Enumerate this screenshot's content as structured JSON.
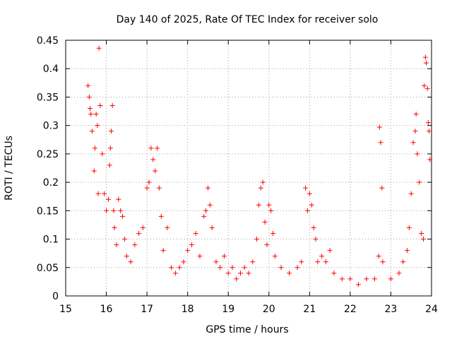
{
  "chart_data": {
    "type": "scatter",
    "title": "Day 140 of 2025, Rate Of TEC Index for receiver solo",
    "xlabel": "GPS time / hours",
    "ylabel": "ROTI / TECUs",
    "xlim": [
      15,
      24
    ],
    "ylim": [
      0,
      0.45
    ],
    "xticks": [
      "15",
      "16",
      "17",
      "18",
      "19",
      "20",
      "21",
      "22",
      "23",
      "24"
    ],
    "yticks": [
      "0",
      "0.05",
      "0.1",
      "0.15",
      "0.2",
      "0.25",
      "0.3",
      "0.35",
      "0.4",
      "0.45"
    ],
    "grid": true,
    "marker": "+",
    "color": "#ff0000",
    "series": [
      {
        "name": "ROTI",
        "points": [
          [
            15.55,
            0.37
          ],
          [
            15.58,
            0.35
          ],
          [
            15.6,
            0.33
          ],
          [
            15.62,
            0.32
          ],
          [
            15.65,
            0.29
          ],
          [
            15.7,
            0.22
          ],
          [
            15.72,
            0.26
          ],
          [
            15.75,
            0.32
          ],
          [
            15.78,
            0.3
          ],
          [
            15.8,
            0.18
          ],
          [
            15.82,
            0.436
          ],
          [
            15.85,
            0.335
          ],
          [
            15.9,
            0.25
          ],
          [
            15.95,
            0.18
          ],
          [
            16.0,
            0.15
          ],
          [
            16.05,
            0.17
          ],
          [
            16.08,
            0.23
          ],
          [
            16.1,
            0.26
          ],
          [
            16.12,
            0.29
          ],
          [
            16.15,
            0.335
          ],
          [
            16.18,
            0.15
          ],
          [
            16.2,
            0.12
          ],
          [
            16.25,
            0.09
          ],
          [
            16.3,
            0.17
          ],
          [
            16.35,
            0.15
          ],
          [
            16.4,
            0.14
          ],
          [
            16.45,
            0.1
          ],
          [
            16.5,
            0.07
          ],
          [
            16.6,
            0.06
          ],
          [
            16.7,
            0.09
          ],
          [
            16.8,
            0.11
          ],
          [
            16.9,
            0.12
          ],
          [
            17.0,
            0.19
          ],
          [
            17.05,
            0.2
          ],
          [
            17.1,
            0.26
          ],
          [
            17.15,
            0.24
          ],
          [
            17.2,
            0.22
          ],
          [
            17.25,
            0.26
          ],
          [
            17.3,
            0.19
          ],
          [
            17.35,
            0.14
          ],
          [
            17.4,
            0.08
          ],
          [
            17.5,
            0.12
          ],
          [
            17.6,
            0.05
          ],
          [
            17.7,
            0.04
          ],
          [
            17.8,
            0.05
          ],
          [
            17.9,
            0.06
          ],
          [
            18.0,
            0.08
          ],
          [
            18.1,
            0.09
          ],
          [
            18.2,
            0.11
          ],
          [
            18.3,
            0.07
          ],
          [
            18.4,
            0.14
          ],
          [
            18.45,
            0.15
          ],
          [
            18.5,
            0.19
          ],
          [
            18.55,
            0.16
          ],
          [
            18.6,
            0.12
          ],
          [
            18.7,
            0.06
          ],
          [
            18.8,
            0.05
          ],
          [
            18.9,
            0.07
          ],
          [
            19.0,
            0.04
          ],
          [
            19.1,
            0.05
          ],
          [
            19.2,
            0.03
          ],
          [
            19.3,
            0.04
          ],
          [
            19.4,
            0.05
          ],
          [
            19.5,
            0.04
          ],
          [
            19.6,
            0.06
          ],
          [
            19.7,
            0.1
          ],
          [
            19.75,
            0.16
          ],
          [
            19.8,
            0.19
          ],
          [
            19.85,
            0.2
          ],
          [
            19.9,
            0.13
          ],
          [
            19.95,
            0.09
          ],
          [
            20.0,
            0.16
          ],
          [
            20.05,
            0.15
          ],
          [
            20.1,
            0.11
          ],
          [
            20.15,
            0.07
          ],
          [
            20.3,
            0.05
          ],
          [
            20.5,
            0.04
          ],
          [
            20.7,
            0.05
          ],
          [
            20.8,
            0.06
          ],
          [
            20.9,
            0.19
          ],
          [
            20.95,
            0.15
          ],
          [
            21.0,
            0.18
          ],
          [
            21.05,
            0.16
          ],
          [
            21.1,
            0.12
          ],
          [
            21.15,
            0.1
          ],
          [
            21.2,
            0.06
          ],
          [
            21.3,
            0.07
          ],
          [
            21.4,
            0.06
          ],
          [
            21.5,
            0.08
          ],
          [
            21.6,
            0.04
          ],
          [
            21.8,
            0.03
          ],
          [
            22.0,
            0.03
          ],
          [
            22.2,
            0.02
          ],
          [
            22.4,
            0.03
          ],
          [
            22.6,
            0.03
          ],
          [
            22.7,
            0.07
          ],
          [
            22.72,
            0.297
          ],
          [
            22.75,
            0.27
          ],
          [
            22.78,
            0.19
          ],
          [
            22.8,
            0.06
          ],
          [
            23.0,
            0.03
          ],
          [
            23.2,
            0.04
          ],
          [
            23.3,
            0.06
          ],
          [
            23.4,
            0.08
          ],
          [
            23.45,
            0.12
          ],
          [
            23.5,
            0.18
          ],
          [
            23.55,
            0.27
          ],
          [
            23.6,
            0.29
          ],
          [
            23.62,
            0.32
          ],
          [
            23.65,
            0.25
          ],
          [
            23.7,
            0.2
          ],
          [
            23.75,
            0.11
          ],
          [
            23.8,
            0.1
          ],
          [
            23.82,
            0.37
          ],
          [
            23.85,
            0.42
          ],
          [
            23.87,
            0.41
          ],
          [
            23.9,
            0.365
          ],
          [
            23.92,
            0.305
          ],
          [
            23.94,
            0.29
          ],
          [
            23.96,
            0.24
          ]
        ]
      }
    ]
  }
}
